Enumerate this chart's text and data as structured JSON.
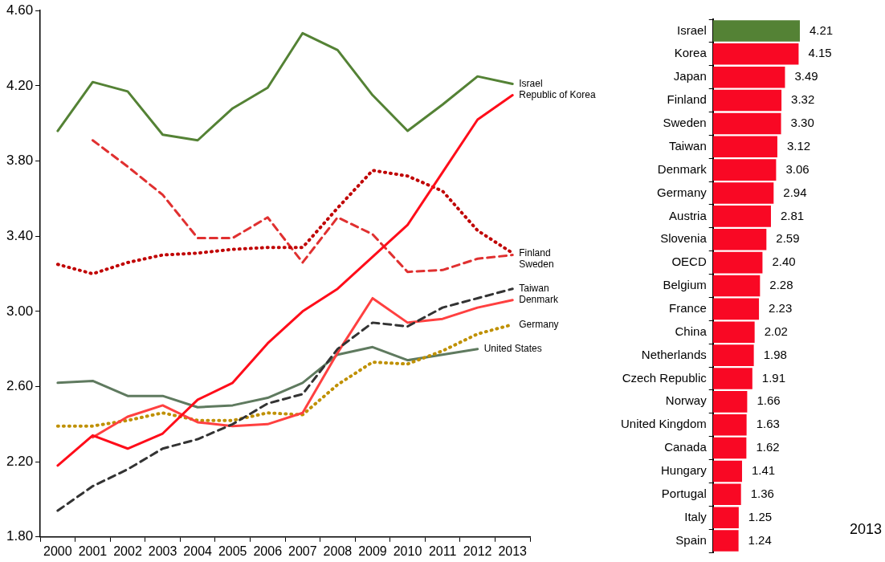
{
  "chart_data": [
    {
      "type": "line",
      "categories": [
        "2000",
        "2001",
        "2002",
        "2003",
        "2004",
        "2005",
        "2006",
        "2007",
        "2008",
        "2009",
        "2010",
        "2011",
        "2012",
        "2013"
      ],
      "ylim": [
        1.8,
        4.6
      ],
      "yticks": [
        {
          "value": 1.8,
          "label": "1.80"
        },
        {
          "value": 2.2,
          "label": "2.20"
        },
        {
          "value": 2.6,
          "label": "2.60"
        },
        {
          "value": 3.0,
          "label": "3.00"
        },
        {
          "value": 3.4,
          "label": "3.40"
        },
        {
          "value": 3.8,
          "label": "3.80"
        },
        {
          "value": 4.2,
          "label": "4.20"
        },
        {
          "value": 4.6,
          "label": "4.60"
        }
      ],
      "grid": false,
      "legend": false,
      "marker": "none",
      "series": [
        {
          "name": "Israel",
          "color": "#548235",
          "line_style": "solid",
          "values": [
            3.96,
            4.22,
            4.17,
            3.94,
            3.91,
            4.08,
            4.19,
            4.48,
            4.39,
            4.15,
            3.96,
            4.1,
            4.25,
            4.21
          ]
        },
        {
          "name": "Republic of Korea",
          "color": "#ff0d1a",
          "line_style": "solid",
          "values": [
            2.18,
            2.34,
            2.27,
            2.35,
            2.53,
            2.62,
            2.83,
            3.0,
            3.12,
            3.29,
            3.46,
            3.74,
            4.02,
            4.15
          ]
        },
        {
          "name": "Finland",
          "color": "#c00000",
          "line_style": "dotted",
          "values": [
            3.25,
            3.2,
            3.26,
            3.3,
            3.31,
            3.33,
            3.34,
            3.34,
            3.55,
            3.75,
            3.72,
            3.64,
            3.43,
            3.31
          ]
        },
        {
          "name": "Sweden",
          "color": "#e03030",
          "line_style": "dashed",
          "values": [
            null,
            3.91,
            3.77,
            3.62,
            3.39,
            3.39,
            3.5,
            3.26,
            3.5,
            3.41,
            3.21,
            3.22,
            3.28,
            3.3
          ]
        },
        {
          "name": "Taiwan",
          "color": "#333333",
          "line_style": "dashed",
          "values": [
            1.94,
            2.07,
            2.16,
            2.27,
            2.32,
            2.4,
            2.51,
            2.56,
            2.8,
            2.94,
            2.92,
            3.02,
            3.07,
            3.12
          ]
        },
        {
          "name": "Denmark",
          "color": "#ff4040",
          "line_style": "solid",
          "values": [
            null,
            2.33,
            2.44,
            2.5,
            2.41,
            2.39,
            2.4,
            2.46,
            2.78,
            3.07,
            2.94,
            2.96,
            3.02,
            3.06
          ]
        },
        {
          "name": "Germany",
          "color": "#bf9000",
          "line_style": "dotted",
          "values": [
            2.39,
            2.39,
            2.42,
            2.46,
            2.42,
            2.42,
            2.46,
            2.45,
            2.61,
            2.73,
            2.72,
            2.79,
            2.88,
            2.93
          ]
        },
        {
          "name": "United States",
          "color": "#5f7a5f",
          "line_style": "solid",
          "values": [
            2.62,
            2.63,
            2.55,
            2.55,
            2.49,
            2.5,
            2.54,
            2.62,
            2.77,
            2.81,
            2.74,
            2.77,
            2.8,
            null
          ]
        }
      ]
    },
    {
      "type": "bar",
      "orientation": "horizontal",
      "categories": [
        "Israel",
        "Korea",
        "Japan",
        "Finland",
        "Sweden",
        "Taiwan",
        "Denmark",
        "Germany",
        "Austria",
        "Slovenia",
        "OECD",
        "Belgium",
        "France",
        "China",
        "Netherlands",
        "Czech Republic",
        "Norway",
        "United Kingdom",
        "Canada",
        "Hungary",
        "Portugal",
        "Italy",
        "Spain"
      ],
      "values": [
        4.21,
        4.15,
        3.49,
        3.32,
        3.3,
        3.12,
        3.06,
        2.94,
        2.81,
        2.59,
        2.4,
        2.28,
        2.23,
        2.02,
        1.98,
        1.91,
        1.66,
        1.63,
        1.62,
        1.41,
        1.36,
        1.25,
        1.24
      ],
      "colors": [
        "#548235",
        "#f90824",
        "#f90824",
        "#f90824",
        "#f90824",
        "#f90824",
        "#f90824",
        "#f90824",
        "#f90824",
        "#f90824",
        "#f90824",
        "#f90824",
        "#f90824",
        "#f90824",
        "#f90824",
        "#f90824",
        "#f90824",
        "#f90824",
        "#f90824",
        "#f90824",
        "#f90824",
        "#f90824",
        "#f90824"
      ],
      "value_labels": [
        "4.21",
        "4.15",
        "3.49",
        "3.32",
        "3.30",
        "3.12",
        "3.06",
        "2.94",
        "2.81",
        "2.59",
        "2.40",
        "2.28",
        "2.23",
        "2.02",
        "1.98",
        "1.91",
        "1.66",
        "1.63",
        "1.62",
        "1.41",
        "1.36",
        "1.25",
        "1.24"
      ],
      "tick_labels": "y",
      "grid": false,
      "legend": false,
      "annotations": [
        "2013"
      ]
    }
  ]
}
